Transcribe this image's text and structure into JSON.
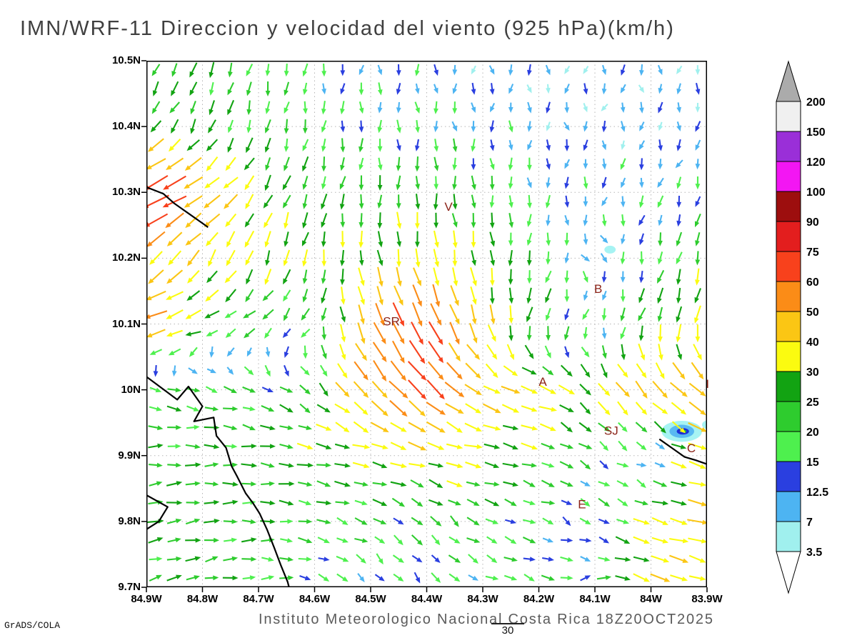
{
  "chart_data": {
    "type": "vector_field_map",
    "title": "IMN/WRF-11 Direccion y velocidad del viento (925 hPa)(km/h)",
    "footer": "Instituto Meteorologico Nacional Costa Rica  18Z20OCT2025",
    "credit": "GrADS/COLA",
    "contour_label": "30",
    "lon_range": [
      84.9,
      83.9
    ],
    "lat_range": [
      9.7,
      10.5
    ],
    "x_tick_labels": [
      "84.9W",
      "84.8W",
      "84.7W",
      "84.6W",
      "84.5W",
      "84.4W",
      "84.3W",
      "84.2W",
      "84.1W",
      "84W",
      "83.9W"
    ],
    "x_tick_values": [
      84.9,
      84.8,
      84.7,
      84.6,
      84.5,
      84.4,
      84.3,
      84.2,
      84.1,
      84.0,
      83.9
    ],
    "y_tick_labels": [
      "10.5N",
      "10.4N",
      "10.3N",
      "10.2N",
      "10.1N",
      "10N",
      "9.9N",
      "9.8N",
      "9.7N"
    ],
    "y_tick_values": [
      10.5,
      10.4,
      10.3,
      10.2,
      10.1,
      10.0,
      9.9,
      9.8,
      9.7
    ],
    "grid": true,
    "station_color": "#8b2318",
    "colorbar": {
      "levels": [
        3.5,
        7,
        12.5,
        15,
        20,
        25,
        30,
        40,
        50,
        60,
        75,
        90,
        100,
        120,
        150,
        200
      ],
      "colors": [
        "#a0f0ee",
        "#4db4f2",
        "#2a3fe0",
        "#4ef04e",
        "#2ecc2e",
        "#12a312",
        "#fbfb10",
        "#fbc614",
        "#fb8c17",
        "#f8411c",
        "#e31e1e",
        "#9d0e0e",
        "#f316f3",
        "#9a2fd8",
        "#f0f0f0"
      ],
      "below_color": "#ffffff",
      "above_color": "#ababab"
    },
    "stations": [
      {
        "label": "V",
        "lon": 84.361,
        "lat": 10.272
      },
      {
        "label": "B",
        "lon": 84.094,
        "lat": 10.147
      },
      {
        "label": "SR",
        "lon": 84.463,
        "lat": 10.098
      },
      {
        "label": "A",
        "lon": 84.193,
        "lat": 10.006
      },
      {
        "label": "I",
        "lon": 83.899,
        "lat": 10.003
      },
      {
        "label": "SJ",
        "lon": 84.071,
        "lat": 9.932
      },
      {
        "label": "C",
        "lon": 83.928,
        "lat": 9.905
      },
      {
        "label": "E",
        "lon": 84.123,
        "lat": 9.82
      }
    ],
    "arrow_grid": {
      "nx": 30,
      "ny": 28
    },
    "wind_grid": {
      "lons": [
        84.9,
        84.8,
        84.7,
        84.6,
        84.5,
        84.4,
        84.3,
        84.2,
        84.1,
        84.0,
        83.9
      ],
      "lats": [
        10.5,
        10.4,
        10.3,
        10.2,
        10.1,
        10.0,
        9.9,
        9.8,
        9.7
      ],
      "u": [
        [
          -12,
          -8,
          -4,
          -2,
          0,
          0,
          0,
          0,
          -2,
          0,
          0
        ],
        [
          -15,
          -10,
          -5,
          -2,
          0,
          2,
          0,
          0,
          0,
          -1,
          -2
        ],
        [
          -75,
          -40,
          -15,
          -8,
          -2,
          0,
          2,
          0,
          -2,
          -4,
          -4
        ],
        [
          -30,
          -20,
          -10,
          -5,
          5,
          5,
          5,
          -5,
          8,
          -5,
          -5
        ],
        [
          -55,
          -25,
          -18,
          -10,
          20,
          30,
          10,
          -10,
          -5,
          -10,
          -8
        ],
        [
          18,
          20,
          18,
          15,
          35,
          45,
          35,
          35,
          20,
          30,
          40
        ],
        [
          22,
          24,
          25,
          28,
          30,
          32,
          30,
          25,
          15,
          5,
          40
        ],
        [
          25,
          25,
          22,
          20,
          18,
          15,
          18,
          15,
          10,
          30,
          42
        ],
        [
          20,
          22,
          20,
          15,
          8,
          10,
          15,
          18,
          15,
          40,
          30
        ]
      ],
      "v": [
        [
          -22,
          -24,
          -20,
          -14,
          -12,
          -10,
          -9,
          -8,
          -8,
          -9,
          -10
        ],
        [
          -20,
          -22,
          -22,
          -18,
          -16,
          -15,
          -12,
          -10,
          -9,
          -9,
          -10
        ],
        [
          -35,
          -25,
          -25,
          -24,
          -22,
          -25,
          -20,
          -15,
          -12,
          -12,
          -14
        ],
        [
          -30,
          -30,
          -30,
          -28,
          -30,
          -35,
          -30,
          -20,
          -8,
          -18,
          -25
        ],
        [
          -15,
          -10,
          -12,
          -15,
          -50,
          -60,
          -40,
          -25,
          -10,
          -28,
          -35
        ],
        [
          -8,
          -5,
          -8,
          -15,
          -40,
          -45,
          -20,
          -10,
          -25,
          -35,
          -30
        ],
        [
          2,
          0,
          -2,
          -5,
          -5,
          -8,
          -5,
          -8,
          -10,
          -3,
          -12
        ],
        [
          5,
          3,
          0,
          -5,
          -8,
          -15,
          -10,
          -5,
          -8,
          -10,
          -8
        ],
        [
          6,
          5,
          2,
          -5,
          -12,
          -10,
          -8,
          -5,
          5,
          -15,
          -10
        ]
      ]
    },
    "coastlines": [
      [
        [
          84.9,
          10.02
        ],
        [
          84.845,
          9.985
        ],
        [
          84.825,
          10.005
        ],
        [
          84.8,
          9.975
        ],
        [
          84.815,
          9.952
        ],
        [
          84.78,
          9.958
        ],
        [
          84.775,
          9.93
        ],
        [
          84.758,
          9.912
        ],
        [
          84.748,
          9.884
        ],
        [
          84.738,
          9.868
        ],
        [
          84.723,
          9.843
        ],
        [
          84.71,
          9.828
        ],
        [
          84.698,
          9.812
        ],
        [
          84.685,
          9.788
        ],
        [
          84.672,
          9.76
        ],
        [
          84.66,
          9.733
        ],
        [
          84.648,
          9.708
        ],
        [
          84.645,
          9.698
        ]
      ],
      [
        [
          84.9,
          10.308
        ],
        [
          84.87,
          10.298
        ],
        [
          84.85,
          10.283
        ],
        [
          84.825,
          10.268
        ],
        [
          84.8,
          10.253
        ],
        [
          84.79,
          10.247
        ]
      ],
      [
        [
          84.9,
          9.84
        ],
        [
          84.862,
          9.822
        ],
        [
          84.878,
          9.8
        ],
        [
          84.9,
          9.788
        ]
      ],
      [
        [
          83.985,
          9.925
        ],
        [
          83.96,
          9.91
        ],
        [
          83.94,
          9.898
        ],
        [
          83.92,
          9.893
        ],
        [
          83.9,
          9.887
        ]
      ]
    ],
    "shaded_areas": [
      {
        "lon": 83.945,
        "lat": 9.937,
        "rx_deg": 0.036,
        "ry_deg": 0.016,
        "color": "#a6f3f3"
      },
      {
        "lon": 83.945,
        "lat": 9.937,
        "rx_deg": 0.022,
        "ry_deg": 0.01,
        "color": "#58b9f2"
      },
      {
        "lon": 83.943,
        "lat": 9.937,
        "rx_deg": 0.011,
        "ry_deg": 0.005,
        "color": "#1b2fd6"
      },
      {
        "lon": 83.941,
        "lat": 9.937,
        "rx_deg": 0.004,
        "ry_deg": 0.002,
        "color": "#2bd22b"
      },
      {
        "lon": 83.897,
        "lat": 9.947,
        "rx_deg": 0.012,
        "ry_deg": 0.007,
        "color": "#a6f3f3"
      },
      {
        "lon": 84.073,
        "lat": 10.213,
        "rx_deg": 0.01,
        "ry_deg": 0.006,
        "color": "#a6f3f3"
      }
    ]
  }
}
